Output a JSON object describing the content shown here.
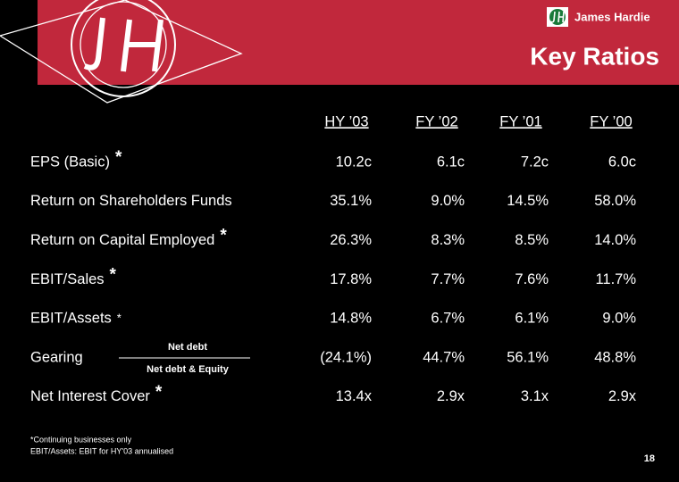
{
  "header": {
    "brand": "James Hardie",
    "title": "Key Ratios"
  },
  "table": {
    "columns": [
      "HY ’03",
      "FY ’02",
      "FY ’01",
      "FY ’00"
    ],
    "rows": [
      {
        "label": "EPS (Basic)",
        "marker": "*",
        "values": [
          "10.2c",
          "6.1c",
          "7.2c",
          "6.0c"
        ]
      },
      {
        "label": "Return on Shareholders Funds",
        "values": [
          "35.1%",
          "9.0%",
          "14.5%",
          "58.0%"
        ]
      },
      {
        "label": "Return on Capital Employed",
        "marker": "*",
        "values": [
          "26.3%",
          "8.3%",
          "8.5%",
          "14.0%"
        ]
      },
      {
        "label": "EBIT/Sales",
        "marker": "*",
        "values": [
          "17.8%",
          "7.7%",
          "7.6%",
          "11.7%"
        ]
      },
      {
        "label": "EBIT/Assets",
        "marker": "*",
        "values": [
          "14.8%",
          "6.7%",
          "6.1%",
          "9.0%"
        ]
      },
      {
        "label": "Gearing",
        "numerator": "Net debt",
        "denominator": "Net debt & Equity",
        "values": [
          "(24.1%)",
          "44.7%",
          "56.1%",
          "48.8%"
        ]
      },
      {
        "label": "Net Interest Cover",
        "marker": "*",
        "values": [
          "13.4x",
          "2.9x",
          "3.1x",
          "2.9x"
        ]
      }
    ]
  },
  "footnotes": [
    "*Continuing businesses only",
    "EBIT/Assets:  EBIT for HY'03 annualised"
  ],
  "page_number": "18"
}
